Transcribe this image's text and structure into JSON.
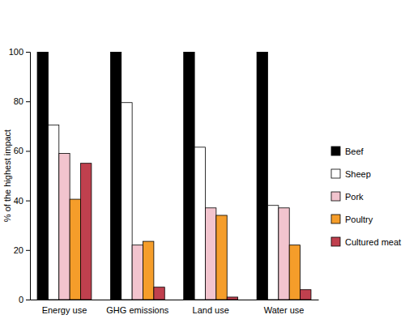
{
  "chart_data": {
    "type": "bar",
    "y_label": "% of the highest impact",
    "categories": [
      "Energy use",
      "GHG emissions",
      "Land use",
      "Water use"
    ],
    "series": [
      {
        "name": "Beef",
        "color": "#000000",
        "values": [
          100,
          100,
          100,
          100
        ]
      },
      {
        "name": "Sheep",
        "color": "#ffffff",
        "values": [
          70.5,
          79.5,
          61.5,
          38
        ]
      },
      {
        "name": "Pork",
        "color": "#f2c4ce",
        "values": [
          59,
          22,
          37,
          37
        ]
      },
      {
        "name": "Poultry",
        "color": "#f59d2a",
        "values": [
          40.5,
          23.5,
          34,
          22
        ]
      },
      {
        "name": "Cultured meat",
        "color": "#c0404e",
        "values": [
          55,
          5,
          1,
          4
        ]
      }
    ],
    "ylim": [
      0,
      100
    ],
    "yticks": [
      0,
      20,
      40,
      60,
      80,
      100
    ],
    "grid": false,
    "legend": "right"
  }
}
